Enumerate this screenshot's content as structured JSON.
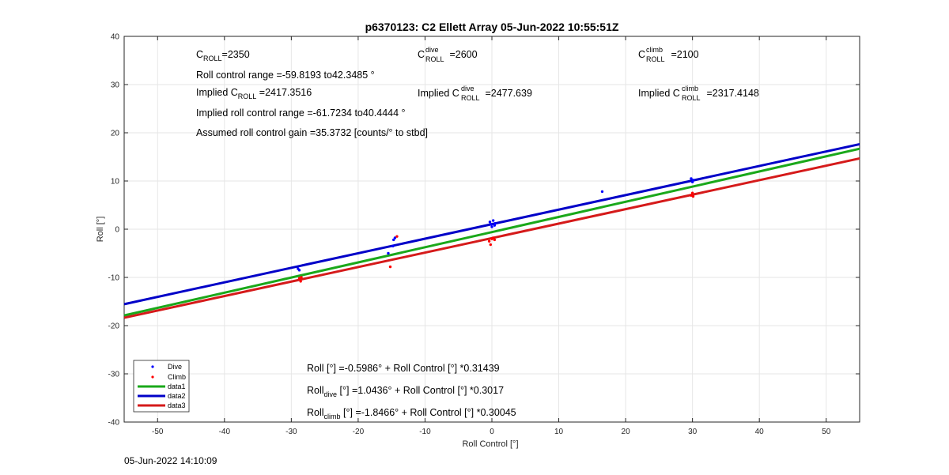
{
  "chart_data": {
    "type": "scatter",
    "title": "p6370123: C2 Ellett Array 05-Jun-2022 10:55:51Z",
    "xlabel": "Roll Control [°]",
    "ylabel": "Roll [°]",
    "xlim": [
      -55,
      55
    ],
    "ylim": [
      -40,
      40
    ],
    "xticks": [
      -50,
      -40,
      -30,
      -20,
      -10,
      0,
      10,
      20,
      30,
      40,
      50
    ],
    "yticks": [
      -40,
      -30,
      -20,
      -10,
      0,
      10,
      20,
      30,
      40
    ],
    "grid": true,
    "legend_position": "bottom-left",
    "series": [
      {
        "name": "Dive",
        "kind": "points",
        "color": "#0000ff",
        "points": [
          [
            -29,
            -8.2
          ],
          [
            -28.8,
            -8.5
          ],
          [
            -15.5,
            -5
          ],
          [
            -14.8,
            -3.5
          ],
          [
            -14.7,
            -2.2
          ],
          [
            -14.5,
            -1.8
          ],
          [
            -0.3,
            1.5
          ],
          [
            -0.1,
            1
          ],
          [
            0,
            0.5
          ],
          [
            0.2,
            1.8
          ],
          [
            0.4,
            0.8
          ],
          [
            0.5,
            1.2
          ],
          [
            16.5,
            7.8
          ],
          [
            29.8,
            10.5
          ],
          [
            30,
            9.8
          ],
          [
            30.1,
            10.2
          ]
        ]
      },
      {
        "name": "Climb",
        "kind": "points",
        "color": "#ff0000",
        "points": [
          [
            -28.8,
            -10.2
          ],
          [
            -28.6,
            -10.8
          ],
          [
            -28.5,
            -10
          ],
          [
            -15.2,
            -7.8
          ],
          [
            -14.2,
            -1.5
          ],
          [
            -0.4,
            -2.5
          ],
          [
            -0.2,
            -3.2
          ],
          [
            0,
            -2
          ],
          [
            0.2,
            -1.8
          ],
          [
            0.4,
            -2.2
          ],
          [
            29.8,
            7
          ],
          [
            30,
            7.5
          ],
          [
            30.1,
            6.8
          ]
        ]
      },
      {
        "name": "data1",
        "kind": "line",
        "color": "#1aa81a",
        "intercept": -0.5986,
        "slope": 0.31439
      },
      {
        "name": "data2",
        "kind": "line",
        "color": "#0000c8",
        "intercept": 1.0436,
        "slope": 0.3017
      },
      {
        "name": "data3",
        "kind": "line",
        "color": "#d51a1a",
        "intercept": -1.8466,
        "slope": 0.30045
      }
    ],
    "annotations": {
      "c_roll": {
        "base": "C",
        "sub": "ROLL",
        "value": "=2350"
      },
      "roll_range": "Roll control range =-59.8193 to42.3485 °",
      "implied_c_roll": {
        "prefix": "Implied C",
        "sub": "ROLL",
        "value": " =2417.3516"
      },
      "implied_range": "Implied roll control range =-61.7234 to40.4444 °",
      "gain": "Assumed roll control gain =35.3732 [counts/° to stbd]",
      "c_dive": {
        "base": "C",
        "sup": "dive",
        "sub": "ROLL",
        "value": " =2600"
      },
      "implied_c_dive": {
        "prefix": "Implied C",
        "sup": "dive",
        "sub": "ROLL",
        "value": " =2477.639"
      },
      "c_climb": {
        "base": "C",
        "sup": "climb",
        "sub": "ROLL",
        "value": " =2100"
      },
      "implied_c_climb": {
        "prefix": "Implied C",
        "sup": "climb",
        "sub": "ROLL",
        "value": " =2317.4148"
      },
      "fit_all": "Roll [°] =-0.5986° + Roll Control [°] *0.31439",
      "fit_dive": {
        "prefix": "Roll",
        "sub": "dive",
        "rest": " [°] =1.0436° + Roll Control [°] *0.3017"
      },
      "fit_climb": {
        "prefix": "Roll",
        "sub": "climb",
        "rest": " [°] =-1.8466° + Roll Control [°] *0.30045"
      }
    }
  },
  "timestamp": "05-Jun-2022 14:10:09"
}
